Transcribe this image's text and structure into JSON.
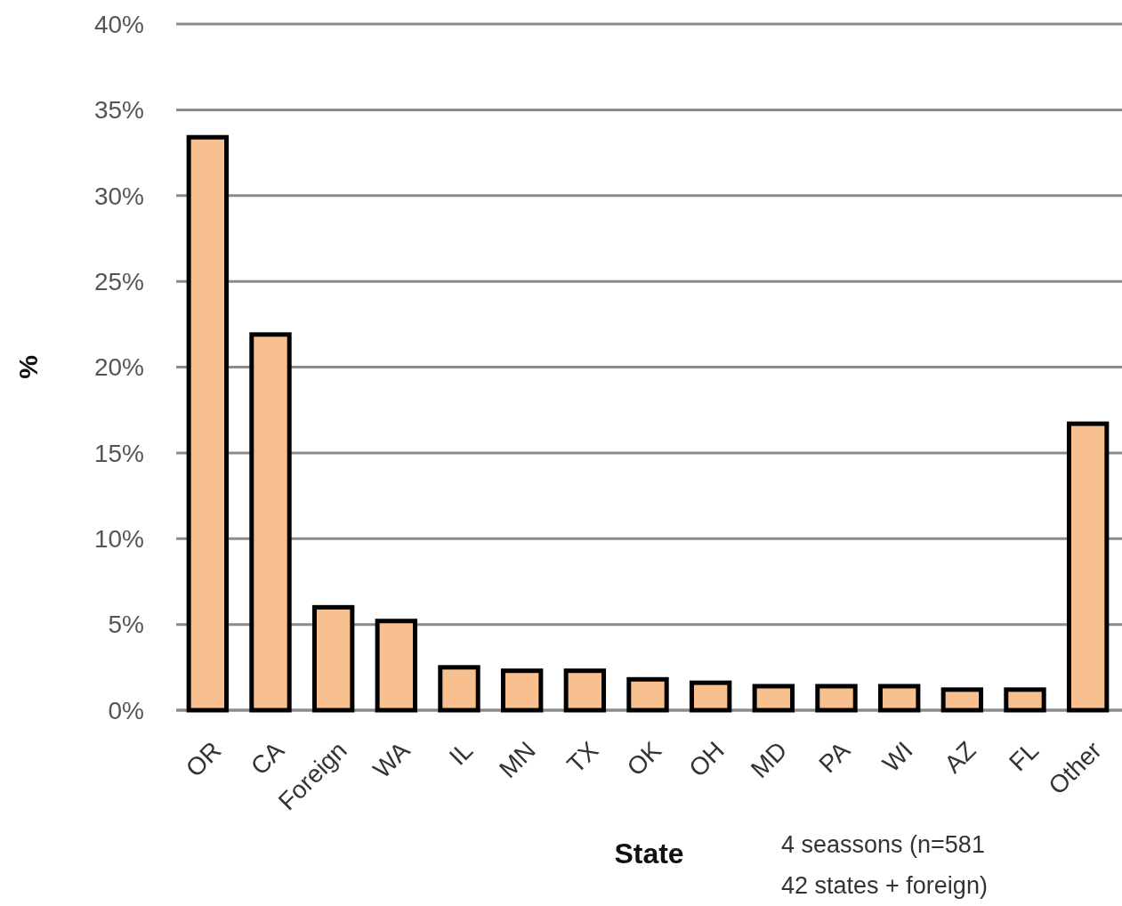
{
  "chart_data": {
    "type": "bar",
    "xlabel": "State",
    "ylabel": "%",
    "categories": [
      "OR",
      "CA",
      "Foreign",
      "WA",
      "IL",
      "MN",
      "TX",
      "OK",
      "OH",
      "MD",
      "PA",
      "WI",
      "AZ",
      "FL",
      "Other"
    ],
    "values": [
      33.4,
      21.9,
      6.0,
      5.2,
      2.5,
      2.3,
      2.3,
      1.8,
      1.6,
      1.4,
      1.4,
      1.4,
      1.2,
      1.2,
      16.7
    ],
    "color": "#f8c08e",
    "ylim": [
      0,
      40
    ],
    "yticks": [
      {
        "value": 0,
        "label": "0%"
      },
      {
        "value": 5,
        "label": "5%"
      },
      {
        "value": 10,
        "label": "10%"
      },
      {
        "value": 15,
        "label": "15%"
      },
      {
        "value": 20,
        "label": "20%"
      },
      {
        "value": 25,
        "label": "25%"
      },
      {
        "value": 30,
        "label": "30%"
      },
      {
        "value": 35,
        "label": "35%"
      },
      {
        "value": 40,
        "label": "40%"
      }
    ],
    "grid": "y",
    "annotations": [
      "4 seassons (n=581",
      "42 states + foreign)"
    ]
  }
}
